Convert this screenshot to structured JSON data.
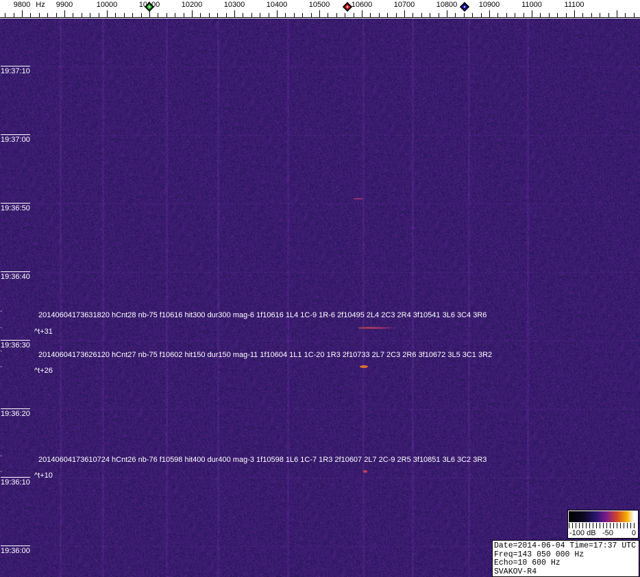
{
  "chart_data": {
    "type": "heatmap",
    "title": "",
    "x_axis": {
      "unit": "Hz",
      "unit_label": "Hz",
      "range": [
        9750,
        11230
      ],
      "ticks": [
        9800,
        9900,
        10000,
        10100,
        10200,
        10300,
        10400,
        10500,
        10600,
        10700,
        10800,
        10900,
        11000,
        11100
      ],
      "tick_labels": [
        "9800",
        "9900",
        "10000",
        "10100",
        "10200",
        "10300",
        "10400",
        "10500",
        "10600",
        "10700",
        "10800",
        "10900",
        "11000",
        "11100"
      ],
      "minor_tick_step": 20
    },
    "y_axis": {
      "range_seconds_top_to_bottom": [
        "19:37:17",
        "19:35:56"
      ],
      "tick_labels": [
        "19:37:10",
        "19:37:00",
        "19:36:50",
        "19:36:40",
        "19:36:30",
        "19:36:20",
        "19:36:10",
        "19:36:00"
      ]
    },
    "markers": [
      {
        "color": "#22c020",
        "frequency": 10100
      },
      {
        "color": "#e01818",
        "frequency": 10566
      },
      {
        "color": "#1010c0",
        "frequency": 10842
      }
    ],
    "background_color": "#2b1f6a",
    "detections": [
      {
        "text": "20140604173631820 hCnt28 nb-75 f10616 hit300 dur300 mag-6 1f10616 1L4 1C-9 1R-6 2f10495 2L4 2C3 2R4 3f10541 3L6 3C4 3R6",
        "offset": "^t+31"
      },
      {
        "text": "20140604173626120 hCnt27 nb-75 f10602 hit150 dur150 mag-11 1f10604 1L1 1C-20 1R3 2f10733 2L7 2C3 2R6 3f10672 3L5 3C1 3R2",
        "offset": "^t+26"
      },
      {
        "text": "20140604173610724 hCnt26 nb-76 f10598 hit400 dur400 mag-3 1f10598 1L6 1C-7 1R3 2f10607 2L7 2C-9 2R5 3f10851 3L6 3C2 3R3",
        "offset": "^t+10"
      }
    ],
    "colorbar": {
      "labels": [
        "-100 dB",
        "-50",
        "0"
      ],
      "range_db": [
        -100,
        0
      ]
    }
  },
  "info": {
    "line1": "Date=2014-06-04 Time=17:37 UTC",
    "line2": "Freq=143 050 000 Hz",
    "line3": "Echo=10 600 Hz",
    "line4": "SVAKOV-R4"
  }
}
